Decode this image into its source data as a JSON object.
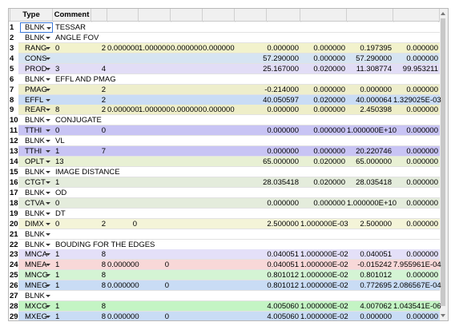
{
  "header": [
    "Type",
    "Comment"
  ],
  "type_colors": {
    "BLNK": "#ffffff",
    "RANG": "#f2f2cc",
    "CONS": "#d6e4f2",
    "PROD": "#e2ddf6",
    "PMAG": "#eeeecc",
    "EFFL": "#c9dcf5",
    "REAR": "#eeeec9",
    "TTHI": "#c8c4f4",
    "OPLT": "#e8f0d4",
    "CTGT": "#e4ecdc",
    "CTVA": "#e4ecdc",
    "DIMX": "#f4f4d8",
    "MNCA": "#e4e0f8",
    "MNEA": "#f8d8d8",
    "MNCG": "#d4f4d4",
    "MNEG": "#c9dcf5",
    "MXCG": "#c4f4c4",
    "MXEG": "#c9dcf5"
  },
  "rows": [
    {
      "num": 1,
      "type": "BLNK",
      "cells": [
        "TESSAR",
        null,
        null,
        null,
        null,
        null,
        null,
        null,
        null,
        null
      ]
    },
    {
      "num": 2,
      "type": "BLNK",
      "cells": [
        "ANGLE FOV",
        null,
        null,
        null,
        null,
        null,
        null,
        null,
        null,
        null
      ]
    },
    {
      "num": 3,
      "type": "RANG",
      "cells": [
        "0",
        "2",
        "0.000000",
        "1.000000",
        "0.000000",
        "0.000000",
        "0.000000",
        "0.000000",
        "0.197395",
        "0.000000"
      ]
    },
    {
      "num": 4,
      "type": "CONS",
      "cells": [
        null,
        null,
        null,
        null,
        null,
        null,
        "57.290000",
        "0.000000",
        "57.290000",
        "0.000000"
      ]
    },
    {
      "num": 5,
      "type": "PROD",
      "cells": [
        "3",
        "4",
        null,
        null,
        null,
        null,
        "25.167000",
        "0.020000",
        "11.308774",
        "99.953211"
      ]
    },
    {
      "num": 6,
      "type": "BLNK",
      "cells": [
        "EFFL AND PMAG",
        null,
        null,
        null,
        null,
        null,
        null,
        null,
        null,
        null
      ]
    },
    {
      "num": 7,
      "type": "PMAG",
      "cells": [
        null,
        "2",
        null,
        null,
        null,
        null,
        "-0.214000",
        "0.000000",
        "0.000000",
        "0.000000"
      ]
    },
    {
      "num": 8,
      "type": "EFFL",
      "cells": [
        null,
        "2",
        null,
        null,
        null,
        null,
        "40.050597",
        "0.020000",
        "40.000064",
        "1.329025E-03"
      ]
    },
    {
      "num": 9,
      "type": "REAR",
      "cells": [
        "8",
        "2",
        "0.000000",
        "1.000000",
        "0.000000",
        "0.000000",
        "0.000000",
        "0.000000",
        "2.450398",
        "0.000000"
      ]
    },
    {
      "num": 10,
      "type": "BLNK",
      "cells": [
        "CONJUGATE",
        null,
        null,
        null,
        null,
        null,
        null,
        null,
        null,
        null
      ]
    },
    {
      "num": 11,
      "type": "TTHI",
      "cells": [
        "0",
        "0",
        null,
        null,
        null,
        null,
        "0.000000",
        "0.000000",
        "1.000000E+10",
        "0.000000"
      ]
    },
    {
      "num": 12,
      "type": "BLNK",
      "cells": [
        "VL",
        null,
        null,
        null,
        null,
        null,
        null,
        null,
        null,
        null
      ]
    },
    {
      "num": 13,
      "type": "TTHI",
      "cells": [
        "1",
        "7",
        null,
        null,
        null,
        null,
        "0.000000",
        "0.000000",
        "20.220746",
        "0.000000"
      ]
    },
    {
      "num": 14,
      "type": "OPLT",
      "cells": [
        "13",
        null,
        null,
        null,
        null,
        null,
        "65.000000",
        "0.020000",
        "65.000000",
        "0.000000"
      ]
    },
    {
      "num": 15,
      "type": "BLNK",
      "cells": [
        "IMAGE DISTANCE",
        null,
        null,
        null,
        null,
        null,
        null,
        null,
        null,
        null
      ]
    },
    {
      "num": 16,
      "type": "CTGT",
      "cells": [
        "1",
        null,
        null,
        null,
        null,
        null,
        "28.035418",
        "0.020000",
        "28.035418",
        "0.000000"
      ]
    },
    {
      "num": 17,
      "type": "BLNK",
      "cells": [
        "OD",
        null,
        null,
        null,
        null,
        null,
        null,
        null,
        null,
        null
      ]
    },
    {
      "num": 18,
      "type": "CTVA",
      "cells": [
        "0",
        null,
        null,
        null,
        null,
        null,
        "0.000000",
        "0.000000",
        "1.000000E+10",
        "0.000000"
      ]
    },
    {
      "num": 19,
      "type": "BLNK",
      "cells": [
        "DT",
        null,
        null,
        null,
        null,
        null,
        null,
        null,
        null,
        null
      ]
    },
    {
      "num": 20,
      "type": "DIMX",
      "cells": [
        "0",
        "2",
        "0",
        null,
        null,
        null,
        "2.500000",
        "1.000000E-03",
        "2.500000",
        "0.000000"
      ]
    },
    {
      "num": 21,
      "type": "BLNK",
      "cells": [
        null,
        null,
        null,
        null,
        null,
        null,
        null,
        null,
        null,
        null
      ]
    },
    {
      "num": 22,
      "type": "BLNK",
      "cells": [
        "BOUDING FOR THE EDGES",
        null,
        null,
        null,
        null,
        null,
        null,
        null,
        null,
        null
      ]
    },
    {
      "num": 23,
      "type": "MNCA",
      "cells": [
        "1",
        "8",
        null,
        null,
        null,
        null,
        "0.040051",
        "1.000000E-02",
        "0.040051",
        "0.000000"
      ]
    },
    {
      "num": 24,
      "type": "MNEA",
      "cells": [
        "1",
        "8",
        "0.000000",
        "0",
        null,
        null,
        "0.040051",
        "1.000000E-02",
        "-0.015242",
        "7.955961E-04"
      ]
    },
    {
      "num": 25,
      "type": "MNCG",
      "cells": [
        "1",
        "8",
        null,
        null,
        null,
        null,
        "0.801012",
        "1.000000E-02",
        "0.801012",
        "0.000000"
      ]
    },
    {
      "num": 26,
      "type": "MNEG",
      "cells": [
        "1",
        "8",
        "0.000000",
        "0",
        null,
        null,
        "0.801012",
        "1.000000E-02",
        "0.772695",
        "2.086567E-04"
      ]
    },
    {
      "num": 27,
      "type": "BLNK",
      "cells": [
        null,
        null,
        null,
        null,
        null,
        null,
        null,
        null,
        null,
        null
      ]
    },
    {
      "num": 28,
      "type": "MXCG",
      "cells": [
        "1",
        "8",
        null,
        null,
        null,
        null,
        "4.005060",
        "1.000000E-02",
        "4.007062",
        "1.043541E-06"
      ]
    },
    {
      "num": 29,
      "type": "MXEG",
      "cells": [
        "1",
        "8",
        "0.000000",
        "0",
        null,
        null,
        "4.005060",
        "1.000000E-02",
        "0.000000",
        "0.000000"
      ]
    }
  ]
}
